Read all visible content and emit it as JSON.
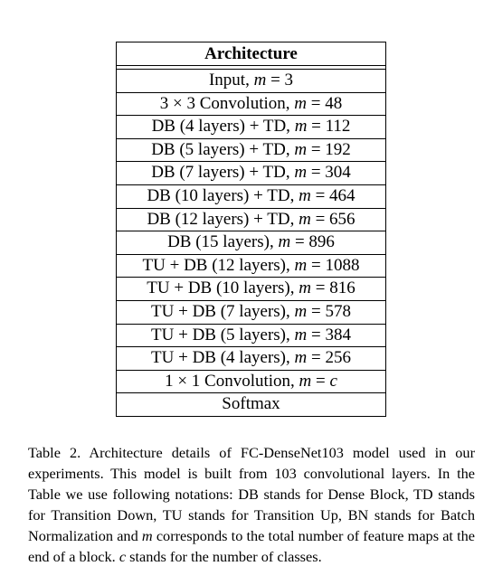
{
  "table": {
    "header": "Architecture",
    "rows": [
      "Input, m = 3",
      "3 × 3 Convolution, m = 48",
      "DB (4 layers) + TD, m = 112",
      "DB (5 layers) + TD, m = 192",
      "DB (7 layers) + TD, m = 304",
      "DB (10 layers) + TD, m = 464",
      "DB (12 layers) + TD, m = 656",
      "DB (15 layers), m = 896",
      "TU + DB (12 layers), m = 1088",
      "TU + DB (10 layers), m = 816",
      "TU + DB (7 layers), m = 578",
      "TU + DB (5 layers), m = 384",
      "TU + DB (4 layers), m = 256",
      "1 × 1 Convolution, m = c",
      "Softmax"
    ]
  },
  "caption": "Table 2. Architecture details of FC-DenseNet103 model used in our experiments. This model is built from 103 convolutional layers. In the Table we use following notations: DB stands for Dense Block, TD stands for Transition Down, TU stands for Transition Up, BN stands for Batch Normalization and m corresponds to the total number of feature maps at the end of a block. c stands for the number of classes."
}
